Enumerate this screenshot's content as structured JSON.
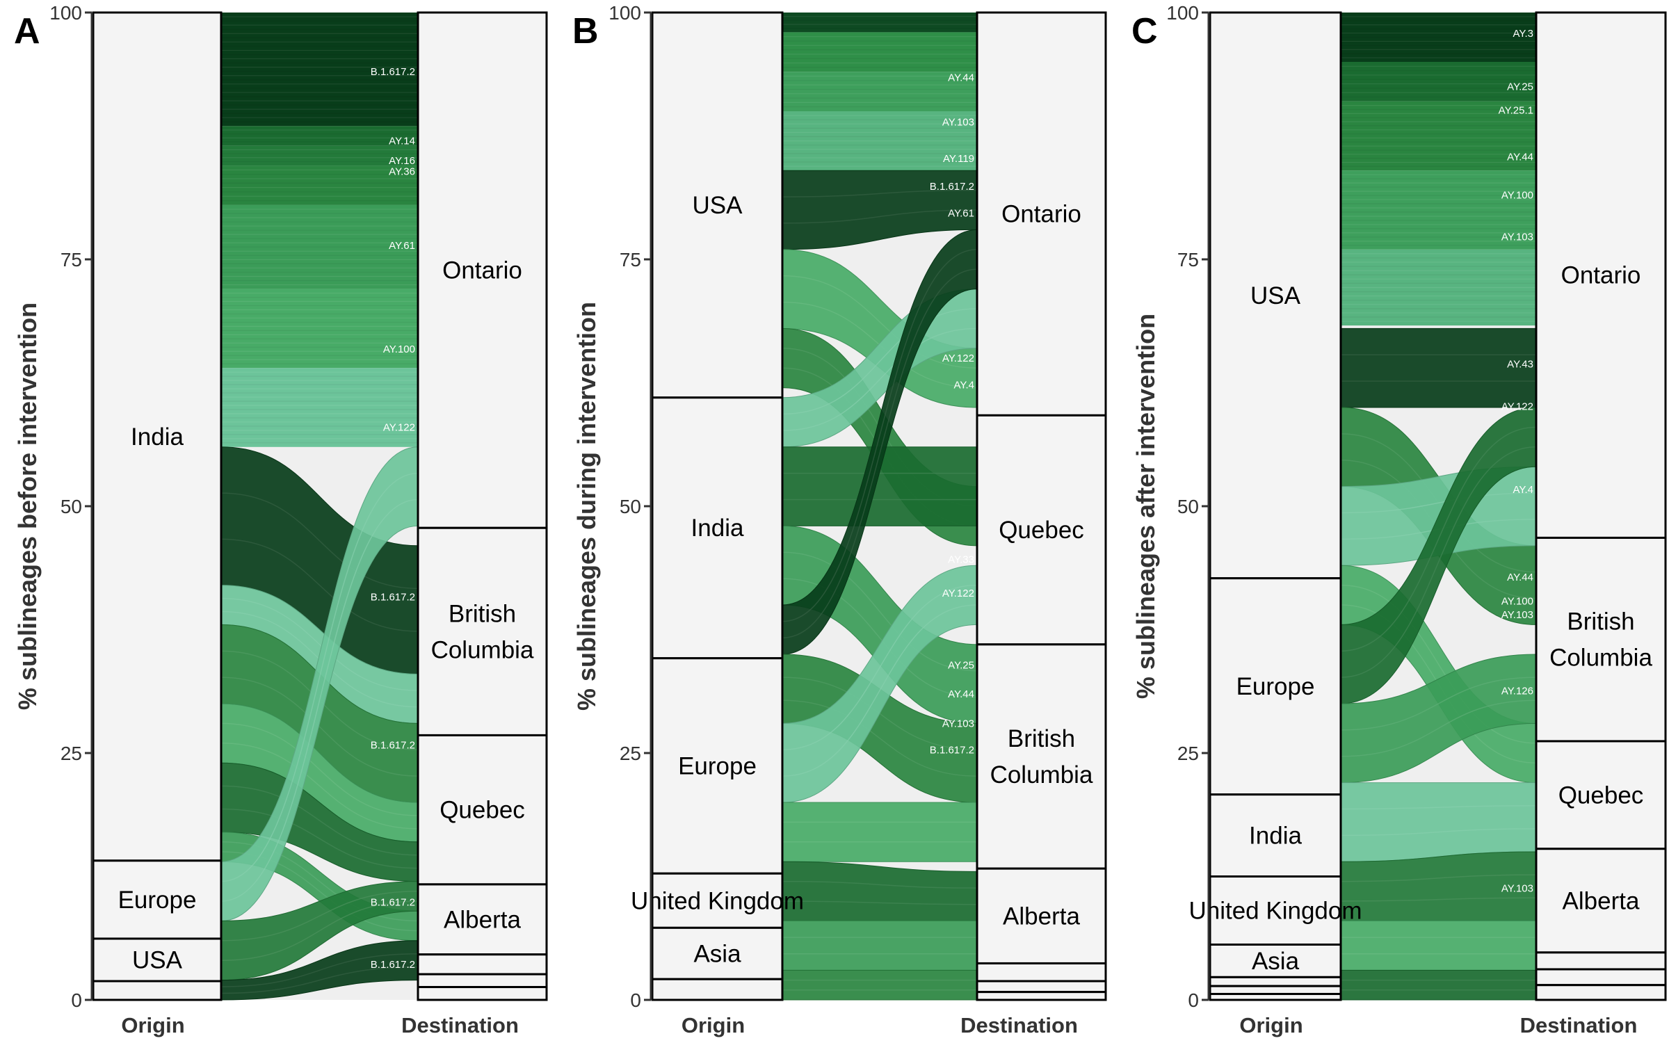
{
  "chart_data": [
    {
      "type": "alluvial",
      "panel_label": "A",
      "ylabel": "% sublineages before intervention",
      "xlabels": [
        "Origin",
        "Destination"
      ],
      "ylim": [
        0,
        100
      ],
      "yticks": [
        0,
        25,
        50,
        75,
        100
      ],
      "origin": [
        {
          "label": "India",
          "from": 14.1,
          "to": 100
        },
        {
          "label": "Europe",
          "from": 6.2,
          "to": 14.1
        },
        {
          "label": "USA",
          "from": 1.9,
          "to": 6.2
        },
        {
          "label": "",
          "from": 0,
          "to": 1.9
        }
      ],
      "destination": [
        {
          "label": "Ontario",
          "from": 47.8,
          "to": 100
        },
        {
          "label": "British Columbia",
          "from": 26.8,
          "to": 47.8
        },
        {
          "label": "Quebec",
          "from": 11.7,
          "to": 26.8
        },
        {
          "label": "Alberta",
          "from": 4.6,
          "to": 11.7
        },
        {
          "label": "",
          "from": 2.6,
          "to": 4.6
        },
        {
          "label": "",
          "from": 1.3,
          "to": 2.6
        },
        {
          "label": "",
          "from": 0,
          "to": 1.3
        }
      ],
      "legend_block": [
        {
          "from": 88.5,
          "to": 100,
          "color": "#083d1a"
        },
        {
          "from": 86.5,
          "to": 88.5,
          "color": "#1a6b30"
        },
        {
          "from": 84.5,
          "to": 86.5,
          "color": "#237a3a"
        },
        {
          "from": 80.5,
          "to": 84.5,
          "color": "#2a8540"
        },
        {
          "from": 72.0,
          "to": 80.5,
          "color": "#3b9c58"
        },
        {
          "from": 64.0,
          "to": 72.0,
          "color": "#48ab67"
        },
        {
          "from": 56.0,
          "to": 64.0,
          "color": "#6cc49a"
        }
      ],
      "flow_labels": [
        {
          "text": "B.1.617.2",
          "y": 94.0
        },
        {
          "text": "AY.14",
          "y": 87.0
        },
        {
          "text": "AY.16",
          "y": 85.0
        },
        {
          "text": "AY.36",
          "y": 83.9
        },
        {
          "text": "AY.61",
          "y": 76.4
        },
        {
          "text": "AY.100",
          "y": 65.9
        },
        {
          "text": "AY.122",
          "y": 58.0
        },
        {
          "text": "B.1.617.2",
          "y": 40.8
        },
        {
          "text": "B.1.617.2",
          "y": 25.8
        },
        {
          "text": "B.1.617.2",
          "y": 9.9
        },
        {
          "text": "B.1.617.2",
          "y": 3.6
        }
      ],
      "flows": [
        {
          "o0": 42,
          "o1": 56,
          "d0": 33,
          "d1": 46,
          "color": "#083d1a"
        },
        {
          "o0": 38,
          "o1": 42,
          "d0": 28,
          "d1": 33,
          "color": "#6cc49a"
        },
        {
          "o0": 30,
          "o1": 38,
          "d0": 20,
          "d1": 28,
          "color": "#2a8540"
        },
        {
          "o0": 24,
          "o1": 30,
          "d0": 16,
          "d1": 20,
          "color": "#48ab67"
        },
        {
          "o0": 17,
          "o1": 24,
          "d0": 12,
          "d1": 16,
          "color": "#1a6b30"
        },
        {
          "o0": 14,
          "o1": 17,
          "d0": 6,
          "d1": 9,
          "color": "#3b9c58"
        },
        {
          "o0": 8,
          "o1": 14,
          "d0": 48,
          "d1": 56,
          "color": "#6cc49a"
        },
        {
          "o0": 2,
          "o1": 8,
          "d0": 9,
          "d1": 12,
          "color": "#237a3a"
        },
        {
          "o0": 0,
          "o1": 2,
          "d0": 2,
          "d1": 6,
          "color": "#083d1a"
        }
      ]
    },
    {
      "type": "alluvial",
      "panel_label": "B",
      "ylabel": "% sublineages during intervention",
      "xlabels": [
        "Origin",
        "Destination"
      ],
      "ylim": [
        0,
        100
      ],
      "yticks": [
        0,
        25,
        50,
        75,
        100
      ],
      "origin": [
        {
          "label": "USA",
          "from": 61.0,
          "to": 100
        },
        {
          "label": "India",
          "from": 34.6,
          "to": 61.0
        },
        {
          "label": "Europe",
          "from": 12.8,
          "to": 34.6
        },
        {
          "label": "United Kingdom",
          "from": 7.3,
          "to": 12.8
        },
        {
          "label": "Asia",
          "from": 2.1,
          "to": 7.3
        },
        {
          "label": "",
          "from": 0,
          "to": 2.1
        }
      ],
      "destination": [
        {
          "label": "Ontario",
          "from": 59.2,
          "to": 100
        },
        {
          "label": "Quebec",
          "from": 36.0,
          "to": 59.2
        },
        {
          "label": "British Columbia",
          "from": 13.3,
          "to": 36.0
        },
        {
          "label": "Alberta",
          "from": 3.7,
          "to": 13.3
        },
        {
          "label": "",
          "from": 1.9,
          "to": 3.7
        },
        {
          "label": "",
          "from": 0.8,
          "to": 1.9
        },
        {
          "label": "",
          "from": 0,
          "to": 0.8
        }
      ],
      "legend_block": [
        {
          "from": 98.0,
          "to": 100,
          "color": "#0e4a22"
        },
        {
          "from": 94.0,
          "to": 98.0,
          "color": "#2f8f48"
        },
        {
          "from": 90.0,
          "to": 94.0,
          "color": "#3e9f5c"
        },
        {
          "from": 84.0,
          "to": 90.0,
          "color": "#58b480"
        }
      ],
      "flow_labels": [
        {
          "text": "AY.44",
          "y": 93.4
        },
        {
          "text": "AY.103",
          "y": 88.9
        },
        {
          "text": "AY.119",
          "y": 85.2
        },
        {
          "text": "B.1.617.2",
          "y": 82.4
        },
        {
          "text": "AY.61",
          "y": 79.7
        },
        {
          "text": "AY.122",
          "y": 65.0
        },
        {
          "text": "AY.4",
          "y": 62.3
        },
        {
          "text": "AY.33",
          "y": 44.6
        },
        {
          "text": "AY.122",
          "y": 41.2
        },
        {
          "text": "AY.25",
          "y": 33.9
        },
        {
          "text": "AY.44",
          "y": 31.0
        },
        {
          "text": "AY.103",
          "y": 28.0
        },
        {
          "text": "B.1.617.2",
          "y": 25.3
        }
      ],
      "flows": [
        {
          "o0": 76,
          "o1": 84,
          "d0": 78,
          "d1": 84,
          "color": "#083d1a"
        },
        {
          "o0": 68,
          "o1": 76,
          "d0": 60,
          "d1": 66,
          "color": "#48ab67"
        },
        {
          "o0": 62,
          "o1": 68,
          "d0": 46,
          "d1": 52,
          "color": "#2a8540"
        },
        {
          "o0": 56,
          "o1": 61,
          "d0": 66,
          "d1": 72,
          "color": "#6cc49a"
        },
        {
          "o0": 48,
          "o1": 56,
          "d0": 48,
          "d1": 56,
          "color": "#1a6b30"
        },
        {
          "o0": 40,
          "o1": 48,
          "d0": 28,
          "d1": 36,
          "color": "#3b9c58"
        },
        {
          "o0": 35,
          "o1": 40,
          "d0": 72,
          "d1": 78,
          "color": "#083d1a"
        },
        {
          "o0": 28,
          "o1": 35,
          "d0": 20,
          "d1": 28,
          "color": "#2a8540"
        },
        {
          "o0": 20,
          "o1": 28,
          "d0": 38,
          "d1": 44,
          "color": "#6cc49a"
        },
        {
          "o0": 14,
          "o1": 20,
          "d0": 14,
          "d1": 20,
          "color": "#48ab67"
        },
        {
          "o0": 8,
          "o1": 14,
          "d0": 8,
          "d1": 13,
          "color": "#1a6b30"
        },
        {
          "o0": 3,
          "o1": 8,
          "d0": 3,
          "d1": 8,
          "color": "#3b9c58"
        },
        {
          "o0": 0,
          "o1": 3,
          "d0": 0,
          "d1": 3,
          "color": "#2a8540"
        }
      ]
    },
    {
      "type": "alluvial",
      "panel_label": "C",
      "ylabel": "% sublineages after intervention",
      "xlabels": [
        "Origin",
        "Destination"
      ],
      "ylim": [
        0,
        100
      ],
      "yticks": [
        0,
        25,
        50,
        75,
        100
      ],
      "origin": [
        {
          "label": "USA",
          "from": 42.7,
          "to": 100
        },
        {
          "label": "Europe",
          "from": 20.8,
          "to": 42.7
        },
        {
          "label": "India",
          "from": 12.5,
          "to": 20.8
        },
        {
          "label": "United Kingdom",
          "from": 5.6,
          "to": 12.5
        },
        {
          "label": "Asia",
          "from": 2.3,
          "to": 5.6
        },
        {
          "label": "",
          "from": 1.4,
          "to": 2.3
        },
        {
          "label": "",
          "from": 0.6,
          "to": 1.4
        },
        {
          "label": "",
          "from": 0,
          "to": 0.6
        }
      ],
      "destination": [
        {
          "label": "Ontario",
          "from": 46.8,
          "to": 100
        },
        {
          "label": "British Columbia",
          "from": 26.2,
          "to": 46.8
        },
        {
          "label": "Quebec",
          "from": 15.3,
          "to": 26.2
        },
        {
          "label": "Alberta",
          "from": 4.8,
          "to": 15.3
        },
        {
          "label": "",
          "from": 3.1,
          "to": 4.8
        },
        {
          "label": "",
          "from": 1.5,
          "to": 3.1
        },
        {
          "label": "",
          "from": 0,
          "to": 1.5
        }
      ],
      "legend_block": [
        {
          "from": 95.0,
          "to": 100,
          "color": "#083d1a"
        },
        {
          "from": 91.0,
          "to": 95.0,
          "color": "#1a6b30"
        },
        {
          "from": 84.0,
          "to": 91.0,
          "color": "#2a8540"
        },
        {
          "from": 76.0,
          "to": 84.0,
          "color": "#3e9f5c"
        },
        {
          "from": 68.3,
          "to": 76.0,
          "color": "#58b480"
        }
      ],
      "flow_labels": [
        {
          "text": "AY.3",
          "y": 97.9
        },
        {
          "text": "AY.25",
          "y": 92.5
        },
        {
          "text": "AY.25.1",
          "y": 90.1
        },
        {
          "text": "AY.44",
          "y": 85.4
        },
        {
          "text": "AY.100",
          "y": 81.5
        },
        {
          "text": "AY.103",
          "y": 77.3
        },
        {
          "text": "AY.43",
          "y": 64.4
        },
        {
          "text": "AY.122",
          "y": 60.1
        },
        {
          "text": "AY.4",
          "y": 51.7
        },
        {
          "text": "AY.44",
          "y": 42.8
        },
        {
          "text": "AY.100",
          "y": 40.4
        },
        {
          "text": "AY.103",
          "y": 39.0
        },
        {
          "text": "AY.126",
          "y": 31.3
        },
        {
          "text": "AY.103",
          "y": 11.3
        }
      ],
      "flows": [
        {
          "o0": 60,
          "o1": 68,
          "d0": 60,
          "d1": 68,
          "color": "#083d1a"
        },
        {
          "o0": 52,
          "o1": 60,
          "d0": 38,
          "d1": 46,
          "color": "#2a8540"
        },
        {
          "o0": 44,
          "o1": 52,
          "d0": 46,
          "d1": 54,
          "color": "#6cc49a"
        },
        {
          "o0": 38,
          "o1": 44,
          "d0": 22,
          "d1": 28,
          "color": "#48ab67"
        },
        {
          "o0": 30,
          "o1": 38,
          "d0": 54,
          "d1": 60,
          "color": "#1a6b30"
        },
        {
          "o0": 22,
          "o1": 30,
          "d0": 28,
          "d1": 35,
          "color": "#3b9c58"
        },
        {
          "o0": 14,
          "o1": 22,
          "d0": 15,
          "d1": 22,
          "color": "#6cc49a"
        },
        {
          "o0": 8,
          "o1": 14,
          "d0": 8,
          "d1": 15,
          "color": "#237a3a"
        },
        {
          "o0": 3,
          "o1": 8,
          "d0": 3,
          "d1": 8,
          "color": "#48ab67"
        },
        {
          "o0": 0,
          "o1": 3,
          "d0": 0,
          "d1": 3,
          "color": "#1a6b30"
        }
      ]
    }
  ]
}
